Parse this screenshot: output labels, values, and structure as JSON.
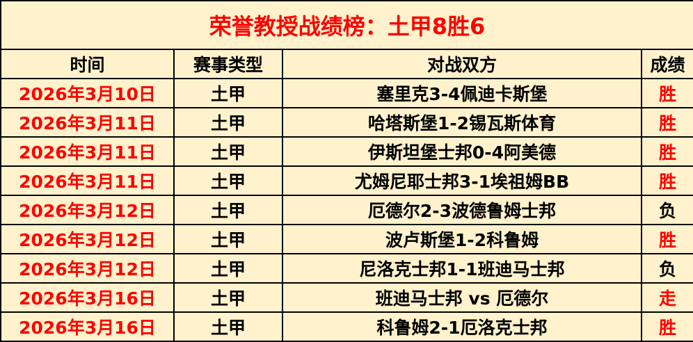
{
  "title": "荣誉教授战绩榜：土甲8胜6",
  "colors": {
    "background": "#FFF2CC",
    "accent_red": "#FF0000"
  },
  "headers": [
    "时间",
    "赛事类型",
    "对战双方",
    "成绩"
  ],
  "rows": [
    {
      "date": "2026年3月10日",
      "type": "土甲",
      "match": "塞里克3-4佩迪卡斯堡",
      "result": "胜"
    },
    {
      "date": "2026年3月11日",
      "type": "土甲",
      "match": "哈塔斯堡1-2锡瓦斯体育",
      "result": "胜"
    },
    {
      "date": "2026年3月11日",
      "type": "土甲",
      "match": "伊斯坦堡士邦0-4阿美德",
      "result": "胜"
    },
    {
      "date": "2026年3月11日",
      "type": "土甲",
      "match": "尤姆尼耶士邦3-1埃祖姆BB",
      "result": "胜"
    },
    {
      "date": "2026年3月12日",
      "type": "土甲",
      "match": "厄德尔2-3波德鲁姆士邦",
      "result": "负"
    },
    {
      "date": "2026年3月12日",
      "type": "土甲",
      "match": "波卢斯堡1-2科鲁姆",
      "result": "胜"
    },
    {
      "date": "2026年3月12日",
      "type": "土甲",
      "match": "尼洛克士邦1-1班迪马士邦",
      "result": "负"
    },
    {
      "date": "2026年3月16日",
      "type": "土甲",
      "match": "班迪马士邦 vs 厄德尔",
      "result": "走"
    },
    {
      "date": "2026年3月16日",
      "type": "土甲",
      "match": "科鲁姆2-1厄洛克士邦",
      "result": "胜"
    }
  ]
}
